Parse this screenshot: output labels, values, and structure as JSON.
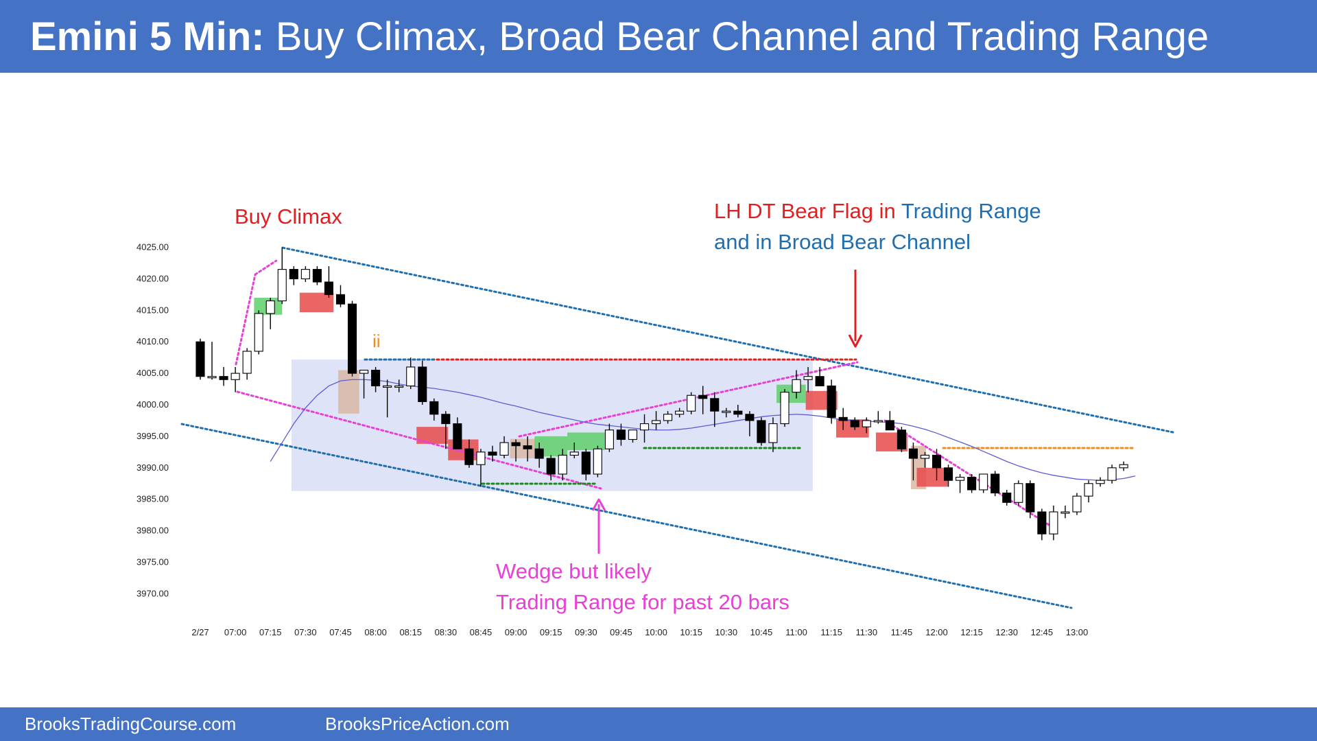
{
  "header": {
    "title_bold": "Emini 5 Min:",
    "title_rest": "Buy Climax, Broad Bear Channel and Trading Range"
  },
  "footer": {
    "link1": "BrooksTradingCourse.com",
    "link2": "BrooksPriceAction.com"
  },
  "colors": {
    "brand_blue": "#4472c4",
    "bull_bar": "#ffffff",
    "bear_bar": "#000000",
    "ema": "#5b5bd6",
    "channel_line": "#1f6fb0",
    "magenta": "#e83fd6",
    "resistance": "#e02020",
    "support": "#1a8a1a",
    "orange": "#f28c1c",
    "range_fill": "#dfe3f8",
    "green_box": "#5fcf6a",
    "red_box": "#e84a4a",
    "tan_box": "#d9b7a4"
  },
  "chart_data": {
    "type": "candlestick",
    "date_label": "2/27",
    "ylim": [
      3968,
      4027
    ],
    "yticks": [
      "4025.00",
      "4020.00",
      "4015.00",
      "4010.00",
      "4005.00",
      "4000.00",
      "3995.00",
      "3990.00",
      "3985.00",
      "3980.00",
      "3975.00",
      "3970.00"
    ],
    "ytick_values": [
      4025,
      4020,
      4015,
      4010,
      4005,
      4000,
      3995,
      3990,
      3985,
      3980,
      3975,
      3970
    ],
    "xticks": [
      "07:00",
      "07:15",
      "07:30",
      "07:45",
      "08:00",
      "08:15",
      "08:30",
      "08:45",
      "09:00",
      "09:15",
      "09:30",
      "09:45",
      "10:00",
      "10:15",
      "10:30",
      "10:45",
      "11:00",
      "11:15",
      "11:30",
      "11:45",
      "12:00",
      "12:15",
      "12:30",
      "12:45",
      "13:00"
    ],
    "xtick_bars": [
      3,
      6,
      9,
      12,
      15,
      18,
      21,
      24,
      27,
      30,
      33,
      36,
      39,
      42,
      45,
      48,
      51,
      54,
      57,
      60,
      63,
      66,
      69,
      72,
      75
    ],
    "bars": [
      [
        4010,
        4010.5,
        4004,
        4004.5
      ],
      [
        4004.5,
        4010,
        4004,
        4004.5
      ],
      [
        4004.5,
        4006,
        4003,
        4004
      ],
      [
        4004,
        4006,
        4002,
        4005
      ],
      [
        4005,
        4009,
        4004,
        4008.5
      ],
      [
        4008.5,
        4015,
        4008,
        4014.5
      ],
      [
        4014.5,
        4017,
        4012,
        4016.5
      ],
      [
        4016.5,
        4025,
        4016,
        4021.5
      ],
      [
        4021.5,
        4022,
        4019,
        4020
      ],
      [
        4020,
        4022,
        4019.5,
        4021.5
      ],
      [
        4021.5,
        4022,
        4019,
        4019.5
      ],
      [
        4019.5,
        4022,
        4017,
        4017.5
      ],
      [
        4017.5,
        4019,
        4015.5,
        4016
      ],
      [
        4016,
        4016.5,
        4004.5,
        4005
      ],
      [
        4005,
        4005.5,
        4001,
        4005.5
      ],
      [
        4005.5,
        4006,
        4002,
        4003
      ],
      [
        4003,
        4004,
        3998,
        4003
      ],
      [
        4003,
        4004,
        4002,
        4003
      ],
      [
        4003,
        4007.5,
        4002.5,
        4006
      ],
      [
        4006,
        4007,
        4000,
        4000.5
      ],
      [
        4000.5,
        4001,
        3997.5,
        3998.5
      ],
      [
        3998.5,
        3999,
        3993,
        3997
      ],
      [
        3997,
        3998,
        3993,
        3993
      ],
      [
        3993,
        3994.5,
        3990,
        3990.5
      ],
      [
        3990.5,
        3993,
        3987,
        3992.5
      ],
      [
        3992.5,
        3993.5,
        3991,
        3992
      ],
      [
        3992,
        3995,
        3991.5,
        3994
      ],
      [
        3994,
        3994.5,
        3991,
        3993.5
      ],
      [
        3993.5,
        3995,
        3991,
        3993
      ],
      [
        3993,
        3994,
        3990,
        3991.5
      ],
      [
        3991.5,
        3992,
        3988,
        3989
      ],
      [
        3989,
        3993,
        3988,
        3992
      ],
      [
        3992,
        3994,
        3991.5,
        3992.5
      ],
      [
        3992.5,
        3993,
        3988,
        3989
      ],
      [
        3989,
        3993.5,
        3988.5,
        3993
      ],
      [
        3993,
        3997,
        3992.5,
        3996
      ],
      [
        3996,
        3997,
        3993.5,
        3994.5
      ],
      [
        3994.5,
        3996,
        3994,
        3996
      ],
      [
        3996,
        3998.5,
        3994,
        3997
      ],
      [
        3997,
        3999,
        3996,
        3997.5
      ],
      [
        3997.5,
        3999,
        3997,
        3998.5
      ],
      [
        3998.5,
        3999.5,
        3998,
        3999
      ],
      [
        3999,
        4002,
        3998.5,
        4001.5
      ],
      [
        4001.5,
        4003,
        3998.5,
        4001
      ],
      [
        4001,
        4002,
        3996.5,
        3999
      ],
      [
        3999,
        3999.5,
        3998,
        3999
      ],
      [
        3999,
        4000,
        3998,
        3998.5
      ],
      [
        3998.5,
        3999,
        3995,
        3997.5
      ],
      [
        3997.5,
        3998,
        3993.5,
        3994
      ],
      [
        3994,
        3998,
        3992.5,
        3997
      ],
      [
        3997,
        4002.5,
        3996.5,
        4002
      ],
      [
        4002,
        4005.5,
        4001,
        4004
      ],
      [
        4004,
        4006,
        4002,
        4004.5
      ],
      [
        4004.5,
        4006,
        4003.5,
        4003
      ],
      [
        4003,
        4004,
        3997,
        3998
      ],
      [
        3998,
        3999.5,
        3996,
        3997.5
      ],
      [
        3997.5,
        3998,
        3996,
        3996.5
      ],
      [
        3996.5,
        3998,
        3995.5,
        3997.5
      ],
      [
        3997.5,
        3999,
        3997,
        3997.5
      ],
      [
        3997.5,
        3999,
        3996,
        3996
      ],
      [
        3996,
        3996.5,
        3992.5,
        3993
      ],
      [
        3993,
        3994,
        3988,
        3991.5
      ],
      [
        3991.5,
        3992.5,
        3990,
        3992
      ],
      [
        3992,
        3993,
        3988,
        3990
      ],
      [
        3990,
        3990.5,
        3987,
        3988
      ],
      [
        3988,
        3989,
        3986,
        3988.5
      ],
      [
        3988.5,
        3989,
        3986,
        3986.5
      ],
      [
        3986.5,
        3989,
        3986,
        3989
      ],
      [
        3989,
        3989.5,
        3985.5,
        3986
      ],
      [
        3986,
        3986.5,
        3984,
        3984.5
      ],
      [
        3984.5,
        3988,
        3984,
        3987.5
      ],
      [
        3987.5,
        3988,
        3982,
        3983
      ],
      [
        3983,
        3983.5,
        3978.5,
        3979.5
      ],
      [
        3979.5,
        3984,
        3978.5,
        3983
      ],
      [
        3983,
        3984,
        3982,
        3983
      ],
      [
        3983,
        3986,
        3982.5,
        3985.5
      ],
      [
        3985.5,
        3988,
        3984.5,
        3987.5
      ],
      [
        3987.5,
        3988.5,
        3987,
        3988
      ],
      [
        3988,
        3990.5,
        3987.5,
        3990
      ],
      [
        3990,
        3991,
        3989.5,
        3990.5
      ]
    ],
    "ema": [
      3991,
      3994,
      3997,
      3999.5,
      4001.5,
      4003,
      4003.8,
      4004,
      4004,
      4003.9,
      4003.7,
      4003.3,
      4003,
      4002.8,
      4002.6,
      4002.3,
      4002,
      4001.6,
      4001.2,
      4000.7,
      4000.2,
      3999.8,
      3999.3,
      3998.8,
      3998.4,
      3998,
      3997.6,
      3997.2,
      3996.9,
      3996.7,
      3996.5,
      3996.3,
      3996.1,
      3996,
      3996,
      3996.1,
      3996.3,
      3996.6,
      3996.9,
      3997.2,
      3997.5,
      3997.8,
      3998.1,
      3998.3,
      3998.4,
      3998.5,
      3998.4,
      3998.2,
      3997.9,
      3997.6,
      3997.5,
      3997.4,
      3997.3,
      3997.2,
      3997,
      3996.6,
      3996.1,
      3995.5,
      3994.8,
      3994.1,
      3993.4,
      3992.6,
      3991.8,
      3991,
      3990.3,
      3989.7,
      3989.2,
      3988.8,
      3988.5,
      3988.2,
      3988.1,
      3988,
      3988.1,
      3988.3,
      3988.7
    ],
    "annotations": {
      "buy_climax": "Buy Climax",
      "ii": "ii",
      "lh_red": "LH DT Bear Flag in",
      "lh_blue": "Trading Range",
      "lh_line2": "and in Broad Bear Channel",
      "wedge_line1": "Wedge but likely",
      "wedge_line2": "Trading Range for past 20 bars"
    }
  }
}
